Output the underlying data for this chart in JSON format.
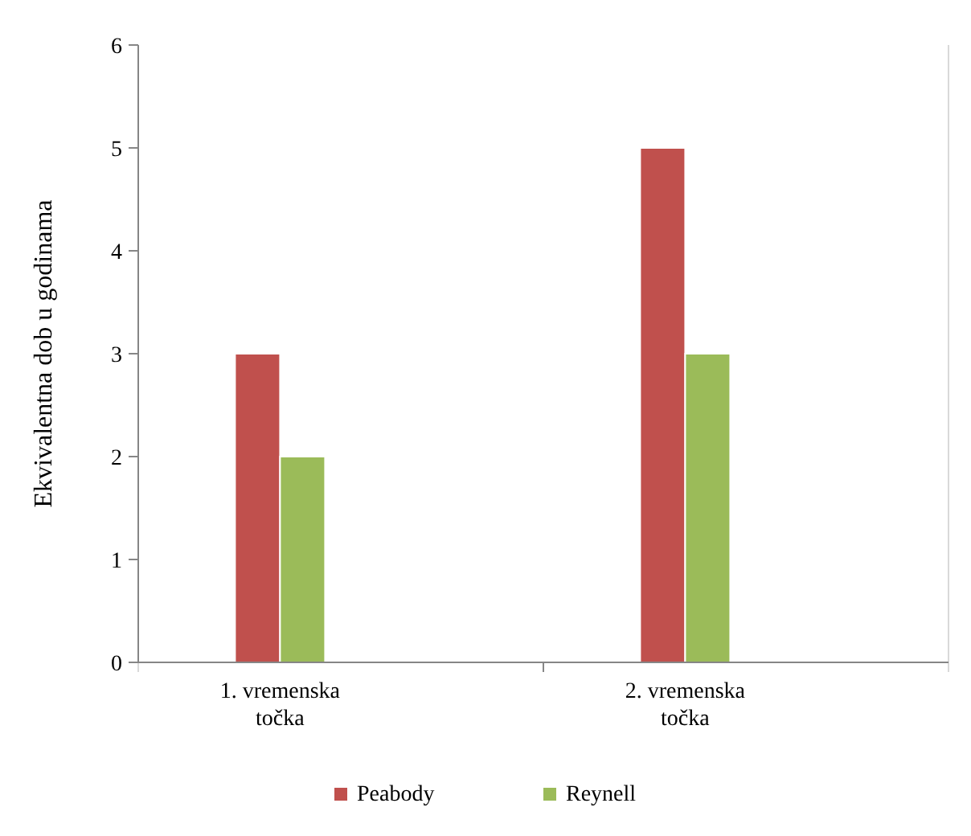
{
  "chart_data": {
    "type": "bar",
    "ylabel": "Ekvivalentna dob u godinama",
    "categories": [
      "1. vremenska točka",
      "2. vremenska točka"
    ],
    "series": [
      {
        "name": "Peabody",
        "color": "#c0504d",
        "values": [
          3,
          5
        ]
      },
      {
        "name": "Reynell",
        "color": "#9bbb59",
        "values": [
          2,
          3
        ]
      }
    ],
    "ylim": [
      0,
      6
    ],
    "yticks": [
      0,
      1,
      2,
      3,
      4,
      5,
      6
    ],
    "grid": "x",
    "legend": "bottom"
  }
}
